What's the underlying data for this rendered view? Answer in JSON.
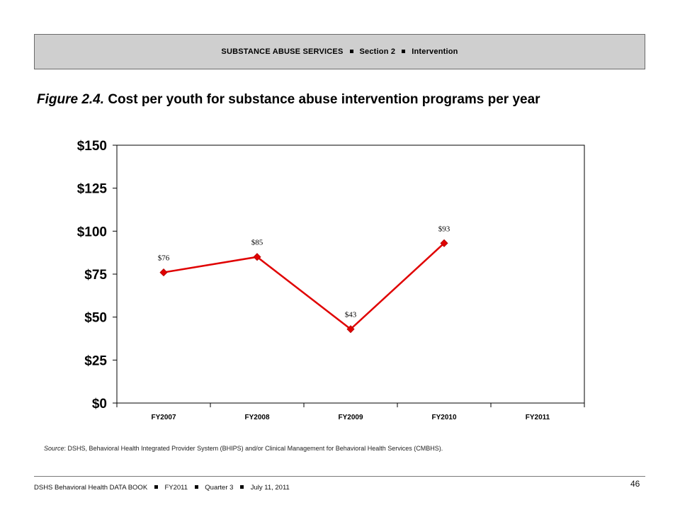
{
  "header": {
    "parts": [
      "SUBSTANCE ABUSE SERVICES",
      "Section 2",
      "Intervention"
    ]
  },
  "figure": {
    "label": "Figure 2.4.",
    "title": "Cost per youth for substance abuse intervention programs per year"
  },
  "chart_data": {
    "type": "line",
    "categories": [
      "FY2007",
      "FY2008",
      "FY2009",
      "FY2010",
      "FY2011"
    ],
    "series": [
      {
        "values": [
          76,
          85,
          43,
          93,
          null
        ],
        "color": "#e00000",
        "marker": "diamond"
      }
    ],
    "data_labels": [
      "$76",
      "$85",
      "$43",
      "$93",
      ""
    ],
    "y_ticks": [
      0,
      25,
      50,
      75,
      100,
      125,
      150
    ],
    "y_tick_labels": [
      "$0",
      "$25",
      "$50",
      "$75",
      "$100",
      "$125",
      "$150"
    ],
    "ylim": [
      0,
      150
    ],
    "grid": false,
    "legend": "none"
  },
  "source": {
    "label": "Source",
    "text": ": DSHS, Behavioral Health Integrated Provider System (BHIPS) and/or Clinical Management for Behavioral Health Services (CMBHS)."
  },
  "footer": {
    "parts": [
      "DSHS Behavioral Health DATA BOOK",
      "FY2011",
      "Quarter 3",
      "July 11, 2011"
    ],
    "page_number": "46"
  }
}
